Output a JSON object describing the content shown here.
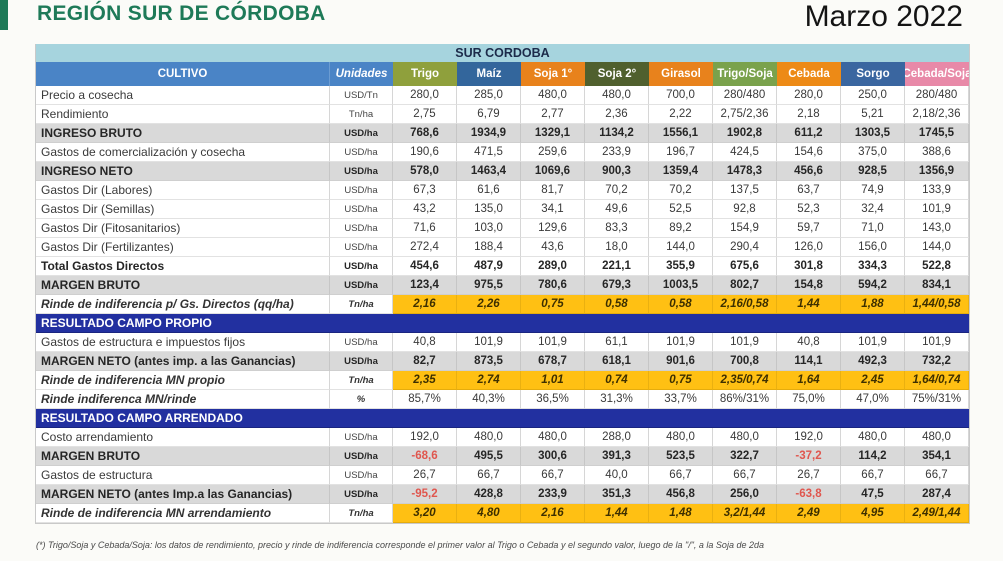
{
  "page": {
    "title": "REGIÓN SUR DE CÓRDOBA",
    "date": "Marzo 2022",
    "footnote": "(*) Trigo/Soja y Cebada/Soja: los datos de rendimiento, precio y rinde de indiferencia corresponde el primer valor al Trigo o Cebada y el segundo valor, luego de la \"/\", a la Soja de 2da"
  },
  "colors": {
    "title_green": "#1e7a58",
    "header_blue": "#4a84c6",
    "band_light_blue": "#a6d4de",
    "section_navy": "#2230a0",
    "bold_row_gray": "#d9d9d9",
    "rinde_yellow": "#ffc013",
    "negative_red": "#e0564e"
  },
  "table": {
    "title": "SUR CORDOBA",
    "col_headers": {
      "cultivo": "CULTIVO",
      "unidades": "Unidades",
      "crops": [
        {
          "label": "Trigo",
          "color": "#8fa03c"
        },
        {
          "label": "Maíz",
          "color": "#33669c"
        },
        {
          "label": "Soja 1°",
          "color": "#e8821c"
        },
        {
          "label": "Soja 2°",
          "color": "#50602e"
        },
        {
          "label": "Girasol",
          "color": "#e8821c"
        },
        {
          "label": "Trigo/Soja",
          "color": "#7aa24c"
        },
        {
          "label": "Cebada",
          "color": "#ed8a16"
        },
        {
          "label": "Sorgo",
          "color": "#3a66a0"
        },
        {
          "label": "Cebada/Soja",
          "color": "#e889a8"
        }
      ]
    },
    "rows": [
      {
        "label": "Precio a cosecha",
        "unit": "USD/Tn",
        "style": "normal",
        "values": [
          "280,0",
          "285,0",
          "480,0",
          "480,0",
          "700,0",
          "280/480",
          "280,0",
          "250,0",
          "280/480"
        ]
      },
      {
        "label": "Rendimiento",
        "unit": "Tn/ha",
        "style": "normal",
        "values": [
          "2,75",
          "6,79",
          "2,77",
          "2,36",
          "2,22",
          "2,75/2,36",
          "2,18",
          "5,21",
          "2,18/2,36"
        ]
      },
      {
        "label": "INGRESO BRUTO",
        "unit": "USD/ha",
        "style": "bold-gray",
        "values": [
          "768,6",
          "1934,9",
          "1329,1",
          "1134,2",
          "1556,1",
          "1902,8",
          "611,2",
          "1303,5",
          "1745,5"
        ]
      },
      {
        "label": "Gastos de comercialización y cosecha",
        "unit": "USD/ha",
        "style": "normal",
        "values": [
          "190,6",
          "471,5",
          "259,6",
          "233,9",
          "196,7",
          "424,5",
          "154,6",
          "375,0",
          "388,6"
        ]
      },
      {
        "label": "INGRESO NETO",
        "unit": "USD/ha",
        "style": "bold-gray",
        "values": [
          "578,0",
          "1463,4",
          "1069,6",
          "900,3",
          "1359,4",
          "1478,3",
          "456,6",
          "928,5",
          "1356,9"
        ]
      },
      {
        "label": "Gastos Dir (Labores)",
        "unit": "USD/ha",
        "style": "normal",
        "values": [
          "67,3",
          "61,6",
          "81,7",
          "70,2",
          "70,2",
          "137,5",
          "63,7",
          "74,9",
          "133,9"
        ]
      },
      {
        "label": "Gastos Dir (Semillas)",
        "unit": "USD/ha",
        "style": "normal",
        "values": [
          "43,2",
          "135,0",
          "34,1",
          "49,6",
          "52,5",
          "92,8",
          "52,3",
          "32,4",
          "101,9"
        ]
      },
      {
        "label": "Gastos Dir (Fitosanitarios)",
        "unit": "USD/ha",
        "style": "normal",
        "values": [
          "71,6",
          "103,0",
          "129,6",
          "83,3",
          "89,2",
          "154,9",
          "59,7",
          "71,0",
          "143,0"
        ]
      },
      {
        "label": "Gastos Dir (Fertilizantes)",
        "unit": "USD/ha",
        "style": "normal",
        "values": [
          "272,4",
          "188,4",
          "43,6",
          "18,0",
          "144,0",
          "290,4",
          "126,0",
          "156,0",
          "144,0"
        ]
      },
      {
        "label": "Total Gastos Directos",
        "unit": "USD/ha",
        "style": "bold",
        "values": [
          "454,6",
          "487,9",
          "289,0",
          "221,1",
          "355,9",
          "675,6",
          "301,8",
          "334,3",
          "522,8"
        ]
      },
      {
        "label": "MARGEN BRUTO",
        "unit": "USD/ha",
        "style": "bold-gray",
        "values": [
          "123,4",
          "975,5",
          "780,6",
          "679,3",
          "1003,5",
          "802,7",
          "154,8",
          "594,2",
          "834,1"
        ]
      },
      {
        "label": "Rinde de indiferencia p/ Gs. Directos (qq/ha)",
        "unit": "Tn/ha",
        "style": "rinde",
        "values": [
          "2,16",
          "2,26",
          "0,75",
          "0,58",
          "0,58",
          "2,16/0,58",
          "1,44",
          "1,88",
          "1,44/0,58"
        ]
      },
      {
        "label": "RESULTADO CAMPO PROPIO",
        "style": "section"
      },
      {
        "label": "Gastos de estructura e impuestos fijos",
        "unit": "USD/ha",
        "style": "normal",
        "values": [
          "40,8",
          "101,9",
          "101,9",
          "61,1",
          "101,9",
          "101,9",
          "40,8",
          "101,9",
          "101,9"
        ]
      },
      {
        "label": "MARGEN NETO (antes imp. a las Ganancias)",
        "unit": "USD/ha",
        "style": "bold-gray",
        "values": [
          "82,7",
          "873,5",
          "678,7",
          "618,1",
          "901,6",
          "700,8",
          "114,1",
          "492,3",
          "732,2"
        ]
      },
      {
        "label": "Rinde de indiferencia MN propio",
        "unit": "Tn/ha",
        "style": "rinde",
        "values": [
          "2,35",
          "2,74",
          "1,01",
          "0,74",
          "0,75",
          "2,35/0,74",
          "1,64",
          "2,45",
          "1,64/0,74"
        ]
      },
      {
        "label": "Rinde indiferenca MN/rinde",
        "unit": "%",
        "style": "pct",
        "values": [
          "85,7%",
          "40,3%",
          "36,5%",
          "31,3%",
          "33,7%",
          "86%/31%",
          "75,0%",
          "47,0%",
          "75%/31%"
        ]
      },
      {
        "label": "RESULTADO CAMPO ARRENDADO",
        "style": "section"
      },
      {
        "label": "Costo arrendamiento",
        "unit": "USD/ha",
        "style": "normal",
        "values": [
          "192,0",
          "480,0",
          "480,0",
          "288,0",
          "480,0",
          "480,0",
          "192,0",
          "480,0",
          "480,0"
        ]
      },
      {
        "label": "MARGEN BRUTO",
        "unit": "USD/ha",
        "style": "bold-gray",
        "values": [
          "-68,6",
          "495,5",
          "300,6",
          "391,3",
          "523,5",
          "322,7",
          "-37,2",
          "114,2",
          "354,1"
        ]
      },
      {
        "label": "Gastos de estructura",
        "unit": "USD/ha",
        "style": "normal",
        "values": [
          "26,7",
          "66,7",
          "66,7",
          "40,0",
          "66,7",
          "66,7",
          "26,7",
          "66,7",
          "66,7"
        ]
      },
      {
        "label": "MARGEN NETO (antes Imp.a las Ganancias)",
        "unit": "USD/ha",
        "style": "bold-gray",
        "values": [
          "-95,2",
          "428,8",
          "233,9",
          "351,3",
          "456,8",
          "256,0",
          "-63,8",
          "47,5",
          "287,4"
        ]
      },
      {
        "label": "Rinde de indiferencia MN arrendamiento",
        "unit": "Tn/ha",
        "style": "rinde",
        "values": [
          "3,20",
          "4,80",
          "2,16",
          "1,44",
          "1,48",
          "3,2/1,44",
          "2,49",
          "4,95",
          "2,49/1,44"
        ]
      }
    ]
  }
}
